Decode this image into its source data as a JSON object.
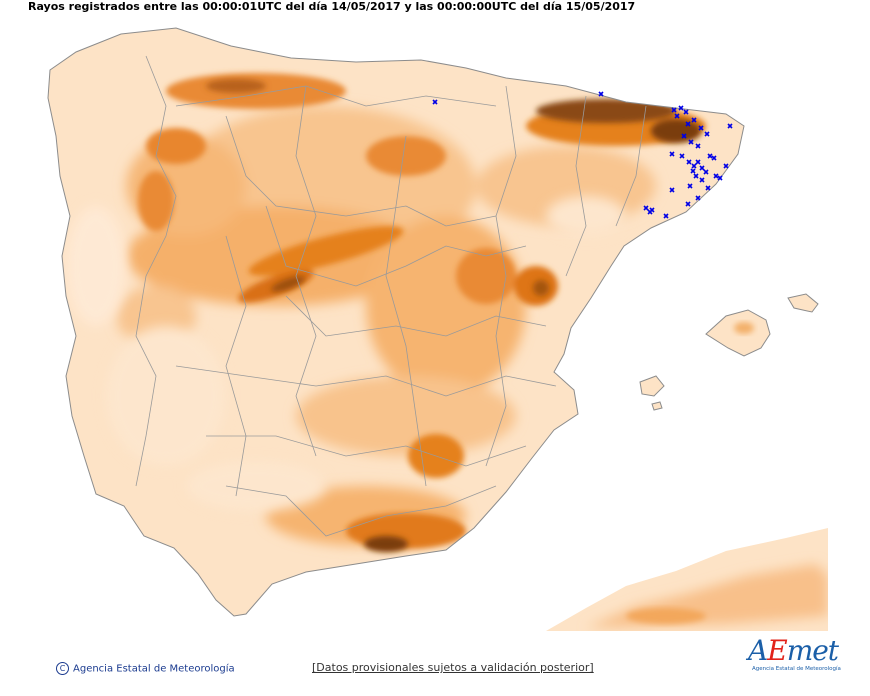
{
  "header": {
    "title": "Rayos registrados entre las 00:00:01UTC del día 14/05/2017 y las 00:00:00UTC del día 15/05/2017"
  },
  "footer": {
    "credit": "Agencia Estatal de Meteorología",
    "copyright_symbol": "C",
    "note": "[Datos provisionales sujetos a validación posterior]"
  },
  "logo": {
    "brand_a": "A",
    "brand_e": "E",
    "brand_rest": "met",
    "tagline": "Agencia Estatal de Meteorología"
  },
  "colors": {
    "relief_low": "#fde3c6",
    "relief_mid": "#f6b36e",
    "relief_high": "#e07b21",
    "relief_peak": "#8a4a12",
    "borders": "#8c8c8c",
    "strike_marker": "#0000e6",
    "link": "#1b3b8f"
  },
  "map": {
    "strike_symbol": "x",
    "strike_count": 38
  }
}
